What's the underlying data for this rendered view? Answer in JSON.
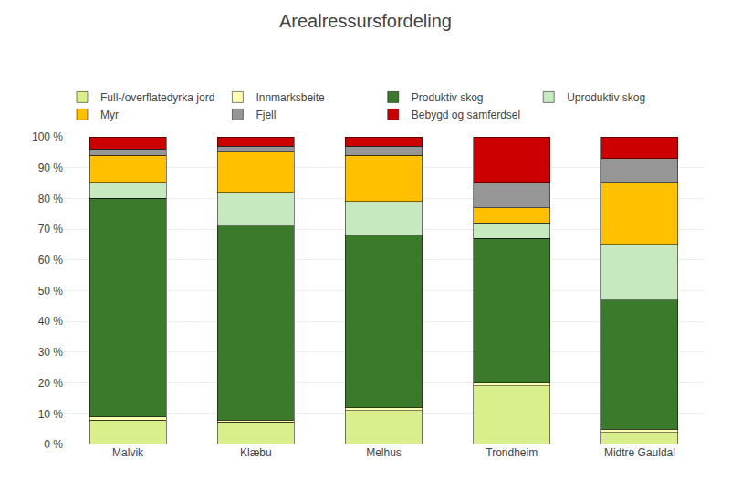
{
  "chart_data": {
    "type": "bar",
    "stacked": true,
    "title": "Arealressursfordeling",
    "categories": [
      "Malvik",
      "Klæbu",
      "Melhus",
      "Trondheim",
      "Midtre Gauldal"
    ],
    "series": [
      {
        "name": "Full-/overflatedyrka jord",
        "color": "#d9ef8b",
        "values": [
          8,
          7,
          11,
          19,
          4
        ]
      },
      {
        "name": "Innmarksbeite",
        "color": "#ffffb2",
        "values": [
          1,
          1,
          1,
          1,
          1
        ]
      },
      {
        "name": "Produktiv skog",
        "color": "#3a7a2a",
        "values": [
          71,
          63,
          56,
          47,
          42
        ]
      },
      {
        "name": "Uproduktiv skog",
        "color": "#c7e9c0",
        "values": [
          5,
          11,
          11,
          5,
          18
        ]
      },
      {
        "name": "Myr",
        "color": "#ffc000",
        "values": [
          9,
          13,
          15,
          5,
          20
        ]
      },
      {
        "name": "Fjell",
        "color": "#969696",
        "values": [
          2,
          2,
          3,
          8,
          8
        ]
      },
      {
        "name": "Bebygd og samferdsel",
        "color": "#cc0000",
        "values": [
          4,
          3,
          3,
          15,
          7
        ]
      }
    ],
    "ylim": [
      0,
      100
    ],
    "yticks": [
      {
        "value": 0,
        "label": "0 %"
      },
      {
        "value": 10,
        "label": "10 %"
      },
      {
        "value": 20,
        "label": "20 %"
      },
      {
        "value": 30,
        "label": "30 %"
      },
      {
        "value": 40,
        "label": "40 %"
      },
      {
        "value": 50,
        "label": "50 %"
      },
      {
        "value": 60,
        "label": "60 %"
      },
      {
        "value": 70,
        "label": "70 %"
      },
      {
        "value": 80,
        "label": "80 %"
      },
      {
        "value": 90,
        "label": "90 %"
      },
      {
        "value": 100,
        "label": "100 %"
      }
    ],
    "grid": true,
    "legend": "top"
  }
}
